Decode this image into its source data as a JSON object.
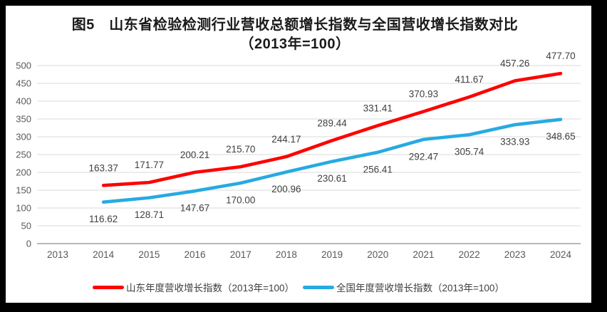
{
  "title": {
    "line1": "图5　山东省检验检测行业营收总额增长指数与全国营收增长指数对比",
    "line2": "（2013年=100）"
  },
  "chart_data": {
    "type": "line",
    "categories": [
      "2013",
      "2014",
      "2015",
      "2016",
      "2017",
      "2018",
      "2019",
      "2020",
      "2021",
      "2022",
      "2023",
      "2024"
    ],
    "series": [
      {
        "name": "山东年度营收增长指数（2013年=100）",
        "color": "#fe0000",
        "label_position": "above",
        "x": [
          "2014",
          "2015",
          "2016",
          "2017",
          "2018",
          "2019",
          "2020",
          "2021",
          "2022",
          "2023",
          "2024"
        ],
        "values": [
          163.37,
          171.77,
          200.21,
          215.7,
          244.17,
          289.44,
          331.41,
          370.93,
          411.67,
          457.26,
          477.7
        ]
      },
      {
        "name": "全国年度营收增长指数（2013年=100）",
        "color": "#27aae1",
        "label_position": "below",
        "x": [
          "2014",
          "2015",
          "2016",
          "2017",
          "2018",
          "2019",
          "2020",
          "2021",
          "2022",
          "2023",
          "2024"
        ],
        "values": [
          116.62,
          128.71,
          147.67,
          170.0,
          200.96,
          230.61,
          256.41,
          292.47,
          305.74,
          333.93,
          348.65
        ]
      }
    ],
    "title": "图5　山东省检验检测行业营收总额增长指数与全国营收增长指数对比（2013年=100）",
    "xlabel": "",
    "ylabel": "",
    "ylim": [
      0,
      500
    ],
    "yticks": [
      0,
      50,
      100,
      150,
      200,
      250,
      300,
      350,
      400,
      450,
      500
    ],
    "grid": true,
    "legend_position": "bottom",
    "value_label_decimals": 2
  },
  "colors": {
    "grid": "#d9d9d9",
    "axis": "#a0a0a0",
    "tick_label": "#595959",
    "value_label": "#3f3f3f"
  }
}
